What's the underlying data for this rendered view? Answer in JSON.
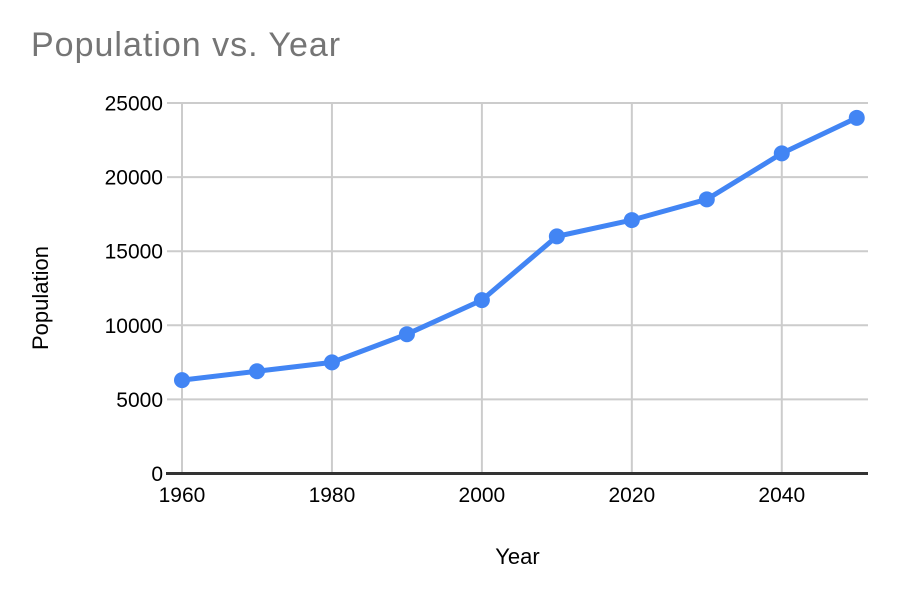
{
  "chart_data": {
    "type": "line",
    "title": "Population vs. Year",
    "xlabel": "Year",
    "ylabel": "Population",
    "x": [
      1960,
      1970,
      1980,
      1990,
      2000,
      2010,
      2020,
      2030,
      2040,
      2050
    ],
    "series": [
      {
        "name": "Population",
        "values": [
          6300,
          6900,
          7500,
          9400,
          11700,
          16000,
          17100,
          18500,
          21600,
          24000
        ]
      }
    ],
    "x_tick_labels": [
      "1960",
      "1980",
      "2000",
      "2020",
      "2040"
    ],
    "x_tick_values": [
      1960,
      1980,
      2000,
      2020,
      2040
    ],
    "y_tick_labels": [
      "0",
      "5000",
      "10000",
      "15000",
      "20000",
      "25000"
    ],
    "y_tick_values": [
      0,
      5000,
      10000,
      15000,
      20000,
      25000
    ],
    "xlim": [
      1958,
      2051.5
    ],
    "ylim": [
      0,
      25000
    ],
    "grid": true,
    "legend": "none",
    "colors": {
      "series": "#4285f4",
      "grid": "#cccccc",
      "axis": "#333333",
      "title": "#757575",
      "tick_label": "#000000",
      "background": "#ffffff"
    }
  }
}
